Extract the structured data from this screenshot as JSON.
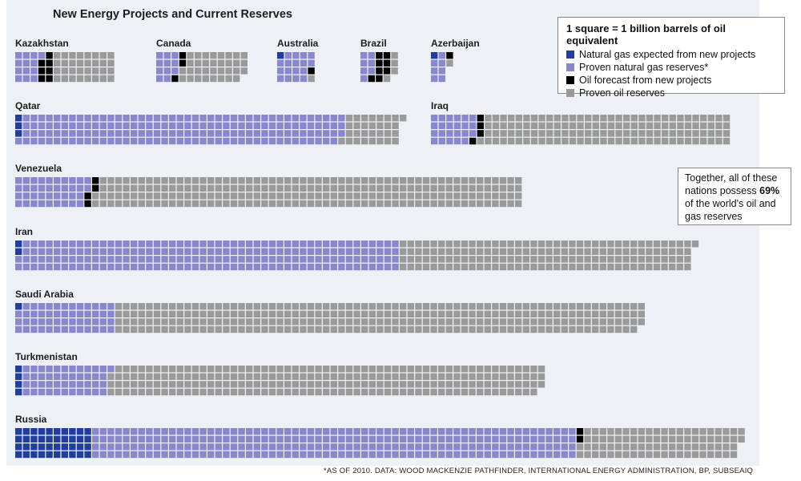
{
  "title": "New Energy Projects and Current Reserves",
  "legend": {
    "title": "1 square = 1 billion barrels of oil equivalent",
    "items": [
      {
        "label": "Natural gas expected from new projects",
        "color": "#1f3e9e"
      },
      {
        "label": "Proven natural gas reserves*",
        "color": "#8a88cc"
      },
      {
        "label": "Oil forecast from new projects",
        "color": "#000000"
      },
      {
        "label": "Proven oil reserves",
        "color": "#9a9a9a"
      }
    ]
  },
  "note": {
    "line1": "Together, all of these nations possess",
    "highlight": "69%",
    "line2": "of the world's oil and gas reserves"
  },
  "source": "*AS OF 2010.   DATA: WOOD MACKENZIE PATHFINDER, INTERNATIONAL ENERGY ADMINISTRATION, BP, SUBSEAIQ",
  "chart_data": {
    "type": "waffle",
    "unit": "1 square = 1 billion barrels of oil equivalent",
    "series": [
      "Natural gas expected from new projects",
      "Proven natural gas reserves*",
      "Oil forecast from new projects",
      "Proven oil reserves"
    ],
    "countries": [
      {
        "name": "Kazakhstan",
        "values": [
          0,
          13,
          7,
          32
        ]
      },
      {
        "name": "Canada",
        "values": [
          0,
          11,
          3,
          33
        ]
      },
      {
        "name": "Australia",
        "values": [
          1,
          17,
          1,
          1
        ]
      },
      {
        "name": "Brazil",
        "values": [
          0,
          7,
          8,
          4
        ]
      },
      {
        "name": "Azerbaijan",
        "values": [
          1,
          7,
          1,
          1
        ]
      },
      {
        "name": "Qatar",
        "values": [
          3,
          168,
          0,
          30
        ]
      },
      {
        "name": "Iraq",
        "values": [
          0,
          23,
          4,
          129
        ]
      },
      {
        "name": "Venezuela",
        "values": [
          0,
          38,
          4,
          222
        ]
      },
      {
        "name": "Iran",
        "values": [
          2,
          198,
          0,
          153
        ]
      },
      {
        "name": "Saudi Arabia",
        "values": [
          1,
          51,
          0,
          275
        ]
      },
      {
        "name": "Turkmenistan",
        "values": [
          4,
          45,
          0,
          226
        ]
      },
      {
        "name": "Russia",
        "values": [
          40,
          252,
          2,
          84
        ]
      }
    ]
  }
}
